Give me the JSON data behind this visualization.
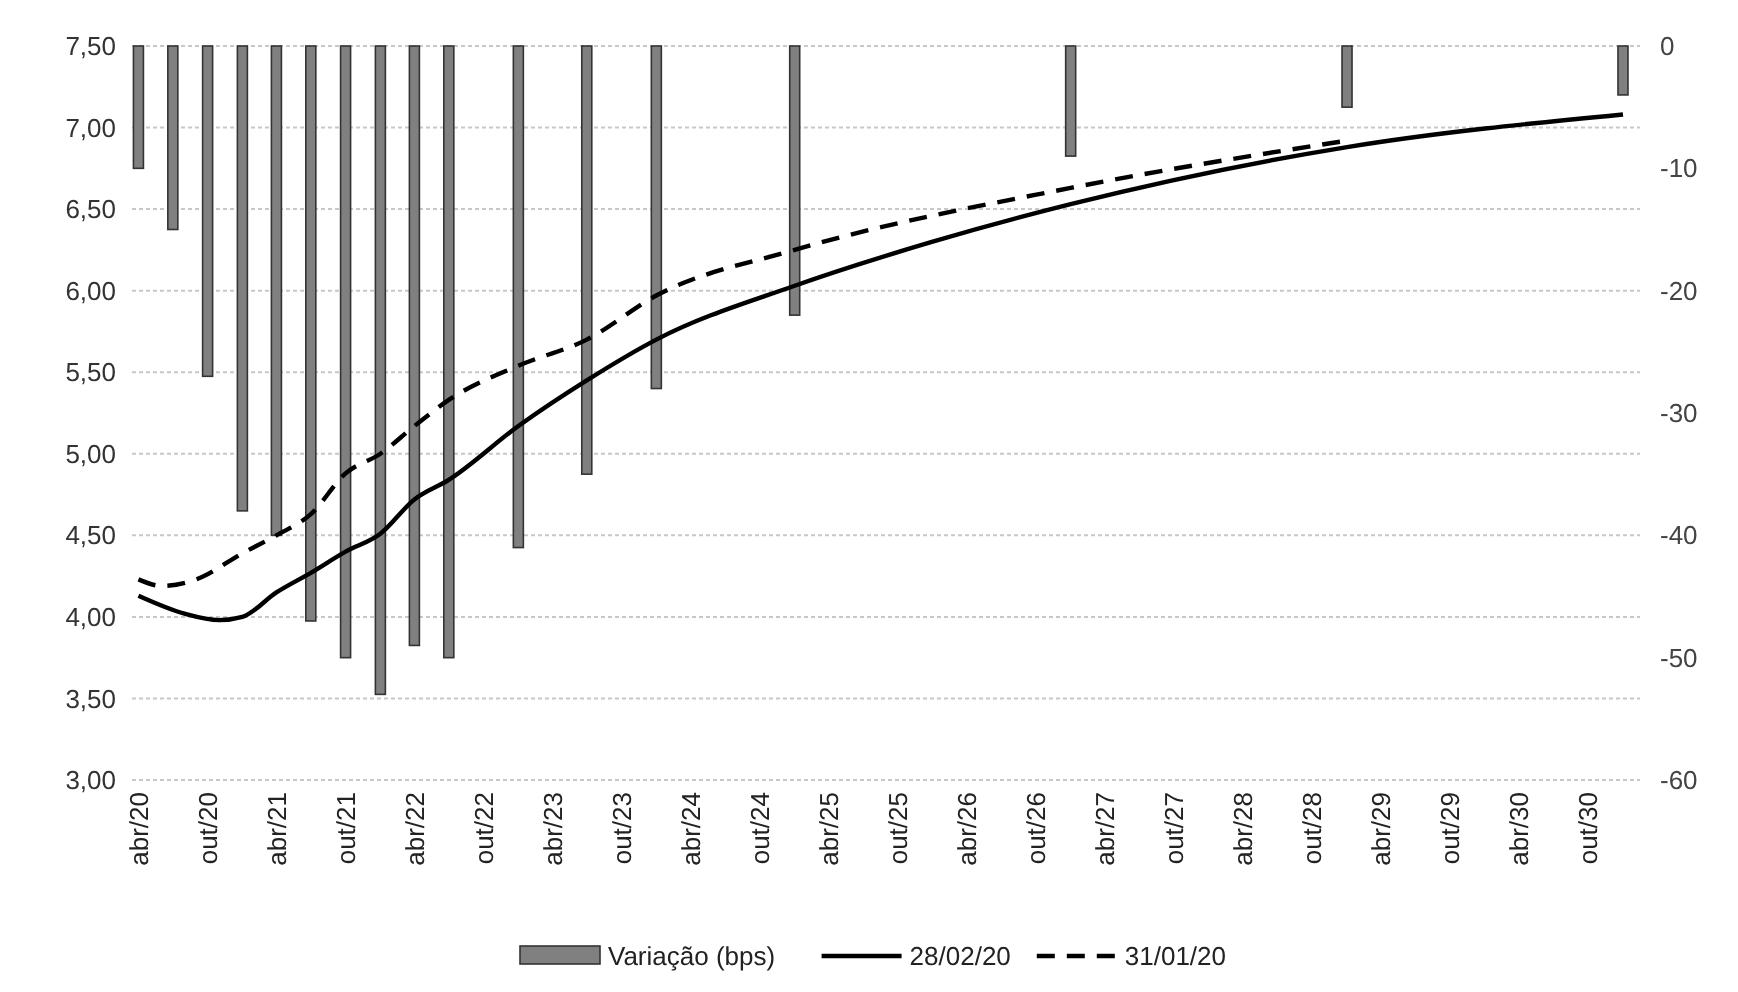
{
  "chart_data": {
    "type": "line",
    "xlim": [
      "2020-03-15",
      "2031-02-15"
    ],
    "xticks": [
      {
        "value": "2020-04",
        "label": "abr/20"
      },
      {
        "value": "2020-10",
        "label": "out/20"
      },
      {
        "value": "2021-04",
        "label": "abr/21"
      },
      {
        "value": "2021-10",
        "label": "out/21"
      },
      {
        "value": "2022-04",
        "label": "abr/22"
      },
      {
        "value": "2022-10",
        "label": "out/22"
      },
      {
        "value": "2023-04",
        "label": "abr/23"
      },
      {
        "value": "2023-10",
        "label": "out/23"
      },
      {
        "value": "2024-04",
        "label": "abr/24"
      },
      {
        "value": "2024-10",
        "label": "out/24"
      },
      {
        "value": "2025-04",
        "label": "abr/25"
      },
      {
        "value": "2025-10",
        "label": "out/25"
      },
      {
        "value": "2026-04",
        "label": "abr/26"
      },
      {
        "value": "2026-10",
        "label": "out/26"
      },
      {
        "value": "2027-04",
        "label": "abr/27"
      },
      {
        "value": "2027-10",
        "label": "out/27"
      },
      {
        "value": "2028-04",
        "label": "abr/28"
      },
      {
        "value": "2028-10",
        "label": "out/28"
      },
      {
        "value": "2029-04",
        "label": "abr/29"
      },
      {
        "value": "2029-10",
        "label": "out/29"
      },
      {
        "value": "2030-04",
        "label": "abr/30"
      },
      {
        "value": "2030-10",
        "label": "out/30"
      }
    ],
    "ylim": [
      3,
      7.5
    ],
    "yticks": [
      {
        "value": 3,
        "label": "3,00"
      },
      {
        "value": 3.5,
        "label": "3,50"
      },
      {
        "value": 4,
        "label": "4,00"
      },
      {
        "value": 4.5,
        "label": "4,50"
      },
      {
        "value": 5,
        "label": "5,00"
      },
      {
        "value": 5.5,
        "label": "5,50"
      },
      {
        "value": 6,
        "label": "6,00"
      },
      {
        "value": 6.5,
        "label": "6,50"
      },
      {
        "value": 7,
        "label": "7,00"
      },
      {
        "value": 7.5,
        "label": "7,50"
      }
    ],
    "y2lim": [
      -60,
      0
    ],
    "y2ticks": [
      -60,
      -50,
      -40,
      -30,
      -20,
      -10,
      0
    ],
    "grid": "y",
    "legend": "bottom",
    "series": [
      {
        "name": "Variação (bps)",
        "type": "bar",
        "axis": "y2",
        "color": "#808080",
        "x": [
          "2020-04",
          "2020-07",
          "2020-10",
          "2021-01",
          "2021-04",
          "2021-07",
          "2021-10",
          "2022-01",
          "2022-04",
          "2022-07",
          "2023-01",
          "2023-07",
          "2024-01",
          "2025-01",
          "2027-01",
          "2029-01",
          "2031-01"
        ],
        "values": [
          -10,
          -15,
          -27,
          -38,
          -40,
          -47,
          -50,
          -53,
          -49,
          -50,
          -41,
          -35,
          -28,
          -22,
          -9,
          -5,
          -4
        ]
      },
      {
        "name": "28/02/20",
        "color": "#000000",
        "line_style": "solid",
        "x": [
          "2020-04",
          "2020-08",
          "2020-11",
          "2021-01",
          "2021-04",
          "2021-07",
          "2021-10",
          "2022-01",
          "2022-04",
          "2022-07",
          "2023-01",
          "2023-07",
          "2024-01",
          "2025-01",
          "2026-01",
          "2027-01",
          "2029-01",
          "2031-01"
        ],
        "values": [
          4.13,
          4.02,
          3.98,
          4.0,
          4.15,
          4.27,
          4.4,
          4.51,
          4.72,
          4.84,
          5.17,
          5.45,
          5.7,
          6.03,
          6.3,
          6.53,
          6.88,
          7.08
        ]
      },
      {
        "name": "31/01/20",
        "color": "#000000",
        "line_style": "dashed",
        "x": [
          "2020-04",
          "2020-06",
          "2020-09",
          "2021-01",
          "2021-04",
          "2021-07",
          "2021-10",
          "2022-01",
          "2022-04",
          "2022-07",
          "2023-01",
          "2023-07",
          "2024-01",
          "2025-01",
          "2027-01",
          "2029-01"
        ],
        "values": [
          4.23,
          4.19,
          4.23,
          4.39,
          4.5,
          4.63,
          4.88,
          5.0,
          5.17,
          5.33,
          5.54,
          5.7,
          5.97,
          6.25,
          6.63,
          6.92
        ]
      }
    ]
  }
}
